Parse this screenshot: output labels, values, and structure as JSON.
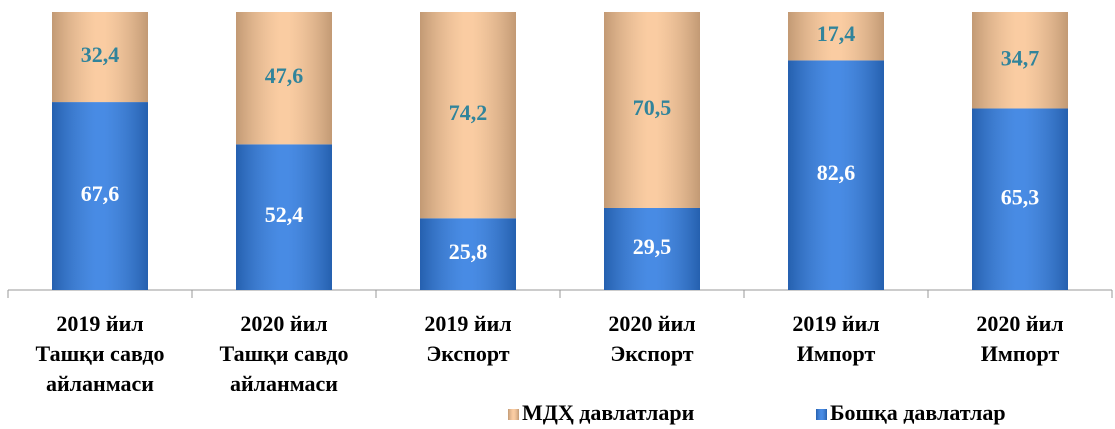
{
  "chart_data": {
    "type": "stacked_bar",
    "categories": [
      [
        "2019 йил",
        "Ташқи савдо",
        "айланмаси"
      ],
      [
        "2020 йил",
        "Ташқи савдо",
        "айланмаси"
      ],
      [
        "2019 йил",
        "Экспорт"
      ],
      [
        "2020 йил",
        "Экспорт"
      ],
      [
        "2019 йил",
        "Импорт"
      ],
      [
        "2020 йил",
        "Импорт"
      ]
    ],
    "series": [
      {
        "name": "МДҲ давлатлари",
        "color": "#f9c595",
        "label_color": "#31849b",
        "values": [
          32.4,
          47.6,
          74.2,
          70.5,
          17.4,
          34.7
        ],
        "value_labels": [
          "32,4",
          "47,6",
          "74,2",
          "70,5",
          "17,4",
          "34,7"
        ]
      },
      {
        "name": "Бошқа давлатлар",
        "color": "#2f7be0",
        "label_color": "#ffffff",
        "values": [
          67.6,
          52.4,
          25.8,
          29.5,
          82.6,
          65.3
        ],
        "value_labels": [
          "67,6",
          "52,4",
          "25,8",
          "29,5",
          "82,6",
          "65,3"
        ]
      }
    ],
    "ylim": [
      0,
      100
    ],
    "legend": "bottom"
  }
}
